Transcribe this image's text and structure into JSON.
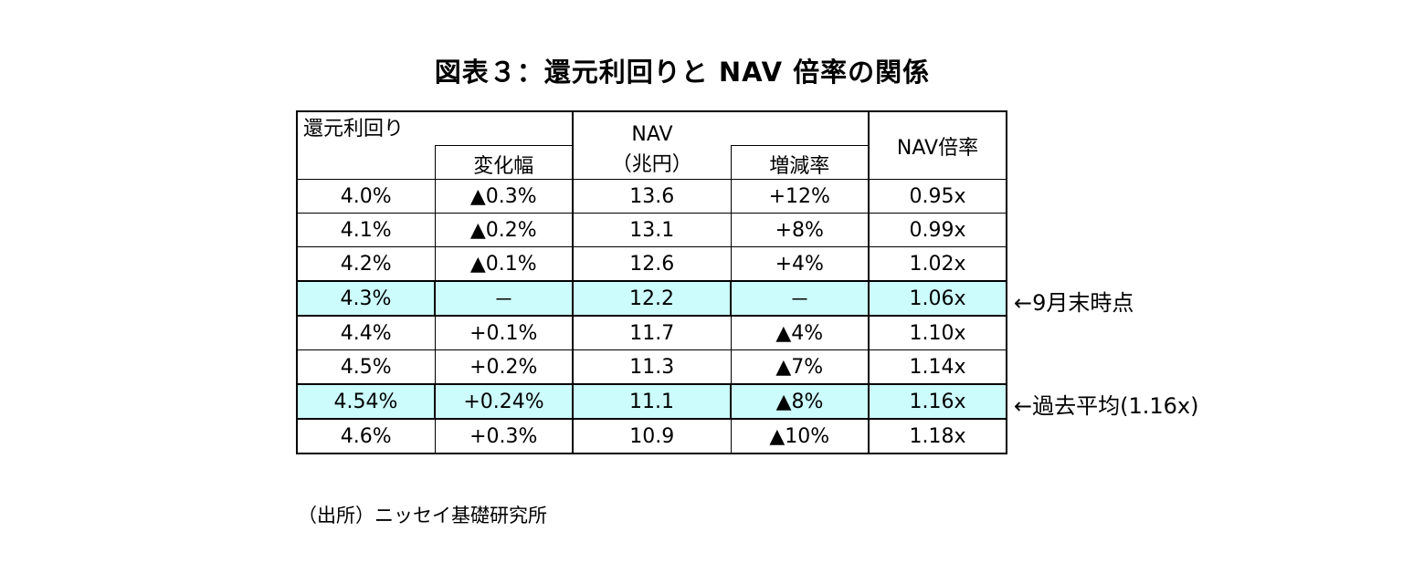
{
  "title": "図表３：還元利回りと NAV 倍率の関係",
  "chart_data": {
    "type": "table",
    "headers": {
      "yield": "還元利回り",
      "yield_change": "変化幅",
      "nav": "NAV",
      "nav_unit": "（兆円）",
      "nav_change": "増減率",
      "nav_multiple": "NAV倍率"
    },
    "rows": [
      {
        "yield": "4.0%",
        "change": "▲0.3%",
        "nav": "13.6",
        "nav_change": "+12%",
        "multiple": "0.95x",
        "highlight": false,
        "note": ""
      },
      {
        "yield": "4.1%",
        "change": "▲0.2%",
        "nav": "13.1",
        "nav_change": "+8%",
        "multiple": "0.99x",
        "highlight": false,
        "note": ""
      },
      {
        "yield": "4.2%",
        "change": "▲0.1%",
        "nav": "12.6",
        "nav_change": "+4%",
        "multiple": "1.02x",
        "highlight": false,
        "note": ""
      },
      {
        "yield": "4.3%",
        "change": "－",
        "nav": "12.2",
        "nav_change": "－",
        "multiple": "1.06x",
        "highlight": true,
        "note": "←9月末時点"
      },
      {
        "yield": "4.4%",
        "change": "+0.1%",
        "nav": "11.7",
        "nav_change": "▲4%",
        "multiple": "1.10x",
        "highlight": false,
        "note": ""
      },
      {
        "yield": "4.5%",
        "change": "+0.2%",
        "nav": "11.3",
        "nav_change": "▲7%",
        "multiple": "1.14x",
        "highlight": false,
        "note": ""
      },
      {
        "yield": "4.54%",
        "change": "+0.24%",
        "nav": "11.1",
        "nav_change": "▲8%",
        "multiple": "1.16x",
        "highlight": true,
        "note": "←過去平均(1.16x)"
      },
      {
        "yield": "4.6%",
        "change": "+0.3%",
        "nav": "10.9",
        "nav_change": "▲10%",
        "multiple": "1.18x",
        "highlight": false,
        "note": ""
      }
    ]
  },
  "source": "（出所）ニッセイ基礎研究所",
  "colors": {
    "highlight_bg": "#ccfcfc",
    "border": "#000000",
    "text": "#000000"
  }
}
